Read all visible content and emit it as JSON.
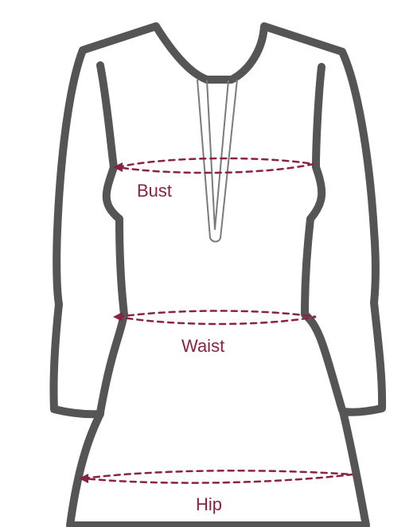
{
  "diagram": {
    "colors": {
      "outline": "#555555",
      "placket": "#7a7a7a",
      "measure": "#8a2342",
      "background": "#ffffff"
    },
    "labels": {
      "bust": "Bust",
      "waist": "Waist",
      "hip": "Hip"
    }
  }
}
